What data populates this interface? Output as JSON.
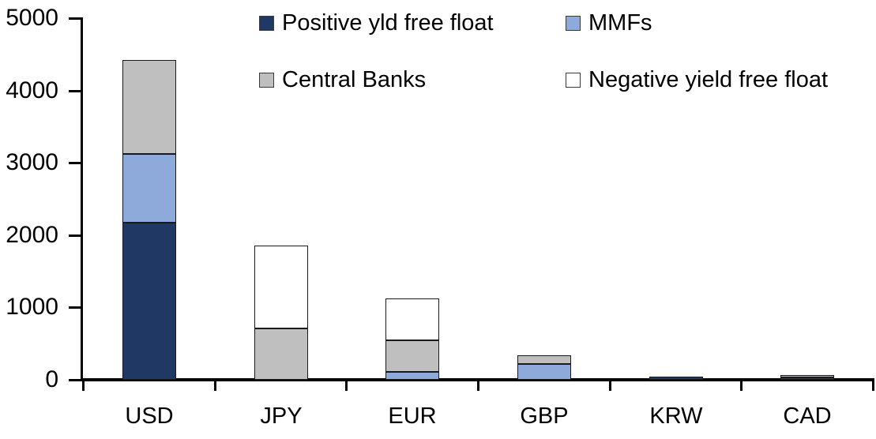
{
  "chart_data": {
    "type": "bar",
    "stacked": true,
    "title": "",
    "xlabel": "",
    "ylabel": "",
    "categories": [
      "USD",
      "JPY",
      "EUR",
      "GBP",
      "KRW",
      "CAD"
    ],
    "series": [
      {
        "name": "Positive yld free float",
        "color": "#1F3864",
        "values": [
          2170,
          0,
          0,
          0,
          45,
          30
        ]
      },
      {
        "name": "MMFs",
        "color": "#8EAADB",
        "values": [
          950,
          0,
          110,
          220,
          0,
          0
        ]
      },
      {
        "name": "Central Banks",
        "color": "#BFBFBF",
        "values": [
          1300,
          710,
          435,
          120,
          0,
          40
        ]
      },
      {
        "name": "Negative yield free float",
        "color": "#FFFFFF",
        "values": [
          0,
          1150,
          575,
          0,
          0,
          0
        ]
      }
    ],
    "totals": [
      4420,
      1860,
      1120,
      340,
      45,
      70
    ],
    "ylim": [
      0,
      5000
    ],
    "yticks": [
      0,
      1000,
      2000,
      3000,
      4000,
      5000
    ],
    "grid": false,
    "legend_position": "top",
    "axis_color": "#000000",
    "segment_border_color": "#1a1a1a"
  }
}
